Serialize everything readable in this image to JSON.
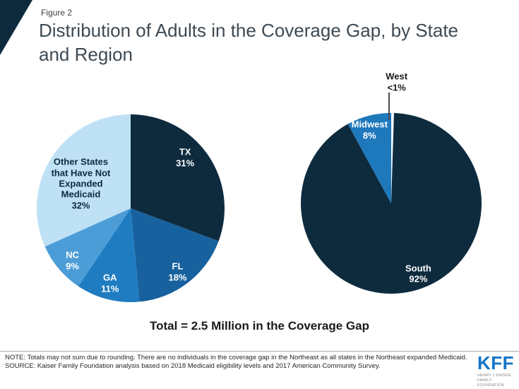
{
  "figure_label": "Figure 2",
  "title": "Distribution of Adults in the Coverage Gap, by State and Region",
  "total_label": "Total = 2.5 Million in the Coverage Gap",
  "note": "NOTE: Totals may not sum due to rounding. There are no individuals in the coverage gap in the Northeast as all states in the Northeast expanded Medicaid.",
  "source": "SOURCE: Kaiser Family Foundation analysis based on 2018 Medicaid eligibility levels and 2017 American Community Survey.",
  "logo": {
    "text": "KFF",
    "subtext": "HENRY J KAISER\nFAMILY FOUNDATION"
  },
  "colors": {
    "accent_navy": "#0E2B3E",
    "kff_blue": "#1374C9",
    "light_blue": "#BFE1F6"
  },
  "chart_data": [
    {
      "type": "pie",
      "name": "coverage-gap-by-state",
      "units": "percent",
      "start_angle_deg": -90,
      "direction": "clockwise",
      "slices": [
        {
          "label": "TX",
          "value": 31,
          "display": "TX\n31%",
          "color": "#0E2B3E",
          "label_color": "#FFFFFF",
          "label_pos": [
            0.79,
            0.23
          ]
        },
        {
          "label": "FL",
          "value": 18,
          "display": "FL\n18%",
          "color": "#17619E",
          "label_color": "#FFFFFF",
          "label_pos": [
            0.75,
            0.84
          ]
        },
        {
          "label": "GA",
          "value": 11,
          "display": "GA\n11%",
          "color": "#1F7CC1",
          "label_color": "#FFFFFF",
          "label_pos": [
            0.39,
            0.9
          ]
        },
        {
          "label": "NC",
          "value": 9,
          "display": "NC\n9%",
          "color": "#4C9DD7",
          "label_color": "#FFFFFF",
          "label_pos": [
            0.19,
            0.78
          ]
        },
        {
          "label": "Other States that Have Not Expanded Medicaid",
          "value": 32,
          "display": "Other States\nthat Have Not\nExpanded\nMedicaid\n32%",
          "color": "#BFE1F6",
          "label_color": "#0E2B3E",
          "label_pos": [
            0.235,
            0.37
          ]
        }
      ]
    },
    {
      "type": "pie",
      "name": "coverage-gap-by-region",
      "units": "percent",
      "start_angle_deg": -90,
      "direction": "clockwise",
      "slices": [
        {
          "label": "West",
          "value": 0.5,
          "display": "West\n<1%",
          "color": "#F2F8FC",
          "label_color": "#1A1A1A",
          "label_pos": [
            0.53,
            -0.17
          ],
          "leader": {
            "x": 0.487,
            "y1": -0.115,
            "y2": 0.04
          }
        },
        {
          "label": "South",
          "value": 92,
          "display": "South\n92%",
          "color": "#0E2B3E",
          "label_color": "#FFFFFF",
          "label_pos": [
            0.65,
            0.89
          ]
        },
        {
          "label": "Midwest",
          "value": 8,
          "display": "Midwest\n8%",
          "color": "#1E78BC",
          "label_color": "#FFFFFF",
          "label_pos": [
            0.38,
            0.095
          ]
        }
      ]
    }
  ]
}
